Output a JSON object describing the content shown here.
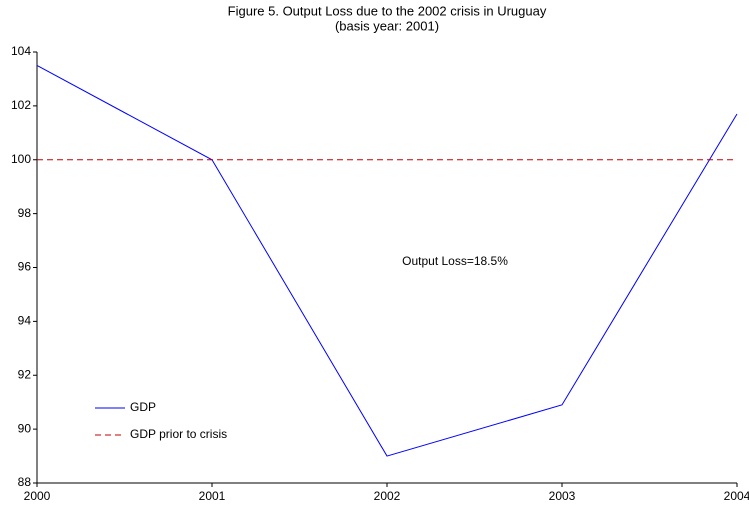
{
  "chart_data": {
    "type": "line",
    "title": "Figure 5. Output Loss due to the 2002 crisis in Uruguay",
    "subtitle": "(basis year: 2001)",
    "annotation": "Output Loss=18.5%",
    "x": [
      2000,
      2001,
      2002,
      2003,
      2004
    ],
    "xlim": [
      2000,
      2004
    ],
    "xticks": [
      2000,
      2001,
      2002,
      2003,
      2004
    ],
    "ylim": [
      88,
      104
    ],
    "yticks": [
      88,
      90,
      92,
      94,
      96,
      98,
      100,
      102,
      104
    ],
    "grid": false,
    "legend": "lower left",
    "series": [
      {
        "name": "GDP",
        "color": "#0000ff",
        "linestyle": "solid",
        "values": [
          103.5,
          100,
          89.0,
          90.9,
          101.7
        ]
      },
      {
        "name": "GDP prior to crisis",
        "color": "#c00000",
        "linestyle": "dashed",
        "values": [
          100,
          100,
          100,
          100,
          100
        ]
      }
    ]
  }
}
